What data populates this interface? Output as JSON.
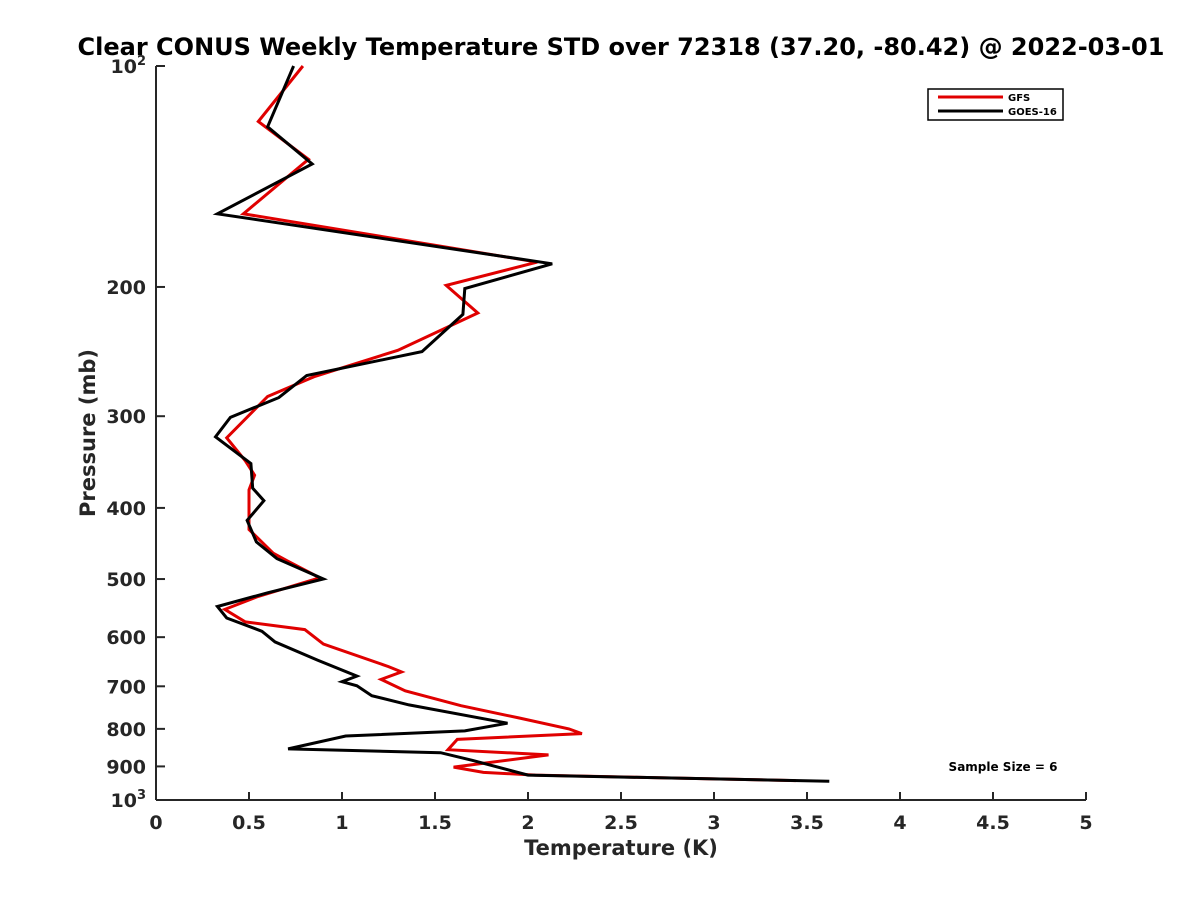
{
  "chart_data": {
    "type": "line",
    "title": "Clear CONUS Weekly Temperature STD over 72318 (37.20, -80.42) @ 2022-03-01",
    "xlabel": "Temperature (K)",
    "ylabel": "Pressure (mb)",
    "xlim": [
      0,
      5
    ],
    "ylim": [
      100,
      1000
    ],
    "yscale": "log",
    "y_reversed": true,
    "grid": false,
    "legend_position": "top-right",
    "x_ticks": [
      {
        "value": 0,
        "label": "0"
      },
      {
        "value": 0.5,
        "label": "0.5"
      },
      {
        "value": 1,
        "label": "1"
      },
      {
        "value": 1.5,
        "label": "1.5"
      },
      {
        "value": 2,
        "label": "2"
      },
      {
        "value": 2.5,
        "label": "2.5"
      },
      {
        "value": 3,
        "label": "3"
      },
      {
        "value": 3.5,
        "label": "3.5"
      },
      {
        "value": 4,
        "label": "4"
      },
      {
        "value": 4.5,
        "label": "4.5"
      },
      {
        "value": 5,
        "label": "5"
      }
    ],
    "y_ticks": [
      {
        "value": 100,
        "label": "10",
        "sup": "2"
      },
      {
        "value": 200,
        "label": "200",
        "sup": ""
      },
      {
        "value": 300,
        "label": "300",
        "sup": ""
      },
      {
        "value": 400,
        "label": "400",
        "sup": ""
      },
      {
        "value": 500,
        "label": "500",
        "sup": ""
      },
      {
        "value": 600,
        "label": "600",
        "sup": ""
      },
      {
        "value": 700,
        "label": "700",
        "sup": ""
      },
      {
        "value": 800,
        "label": "800",
        "sup": ""
      },
      {
        "value": 900,
        "label": "900",
        "sup": ""
      },
      {
        "value": 1000,
        "label": "10",
        "sup": "3"
      }
    ],
    "series": [
      {
        "name": "GFS",
        "color": "#e00000",
        "points": [
          [
            0.79,
            100
          ],
          [
            0.55,
            119
          ],
          [
            0.82,
            134
          ],
          [
            0.47,
            159
          ],
          [
            2.05,
            185
          ],
          [
            1.56,
            199
          ],
          [
            1.73,
            217
          ],
          [
            1.3,
            244
          ],
          [
            0.85,
            265
          ],
          [
            0.6,
            282
          ],
          [
            0.38,
            321
          ],
          [
            0.48,
            345
          ],
          [
            0.53,
            361
          ],
          [
            0.5,
            378
          ],
          [
            0.5,
            405
          ],
          [
            0.5,
            428
          ],
          [
            0.63,
            461
          ],
          [
            0.71,
            473
          ],
          [
            0.88,
            498
          ],
          [
            0.55,
            528
          ],
          [
            0.37,
            550
          ],
          [
            0.48,
            572
          ],
          [
            0.8,
            586
          ],
          [
            0.9,
            613
          ],
          [
            1.25,
            658
          ],
          [
            1.32,
            669
          ],
          [
            1.21,
            685
          ],
          [
            1.34,
            710
          ],
          [
            1.64,
            744
          ],
          [
            1.95,
            773
          ],
          [
            2.22,
            800
          ],
          [
            2.29,
            812
          ],
          [
            1.62,
            827
          ],
          [
            1.57,
            854
          ],
          [
            2.11,
            868
          ],
          [
            1.6,
            902
          ],
          [
            1.76,
            917
          ],
          [
            2.04,
            925
          ],
          [
            3.44,
            941
          ]
        ]
      },
      {
        "name": "GOES-16",
        "color": "#000000",
        "points": [
          [
            0.74,
            100
          ],
          [
            0.6,
            121
          ],
          [
            0.84,
            136
          ],
          [
            0.33,
            159
          ],
          [
            2.13,
            186
          ],
          [
            1.66,
            201
          ],
          [
            1.65,
            218
          ],
          [
            1.43,
            245
          ],
          [
            0.81,
            264
          ],
          [
            0.66,
            283
          ],
          [
            0.4,
            301
          ],
          [
            0.32,
            320
          ],
          [
            0.51,
            348
          ],
          [
            0.52,
            376
          ],
          [
            0.58,
            391
          ],
          [
            0.49,
            416
          ],
          [
            0.54,
            445
          ],
          [
            0.65,
            469
          ],
          [
            0.9,
            500
          ],
          [
            0.6,
            522
          ],
          [
            0.33,
            545
          ],
          [
            0.38,
            565
          ],
          [
            0.57,
            589
          ],
          [
            0.64,
            609
          ],
          [
            0.87,
            645
          ],
          [
            1.08,
            678
          ],
          [
            1.0,
            690
          ],
          [
            1.08,
            699
          ],
          [
            1.16,
            721
          ],
          [
            1.36,
            742
          ],
          [
            1.89,
            786
          ],
          [
            1.66,
            805
          ],
          [
            1.02,
            818
          ],
          [
            0.71,
            852
          ],
          [
            1.53,
            862
          ],
          [
            1.7,
            883
          ],
          [
            2.0,
            925
          ],
          [
            3.62,
            943
          ]
        ]
      }
    ],
    "annotations": [
      {
        "text": "Sample Size = 6",
        "x": 4.55,
        "y": 900
      }
    ]
  }
}
